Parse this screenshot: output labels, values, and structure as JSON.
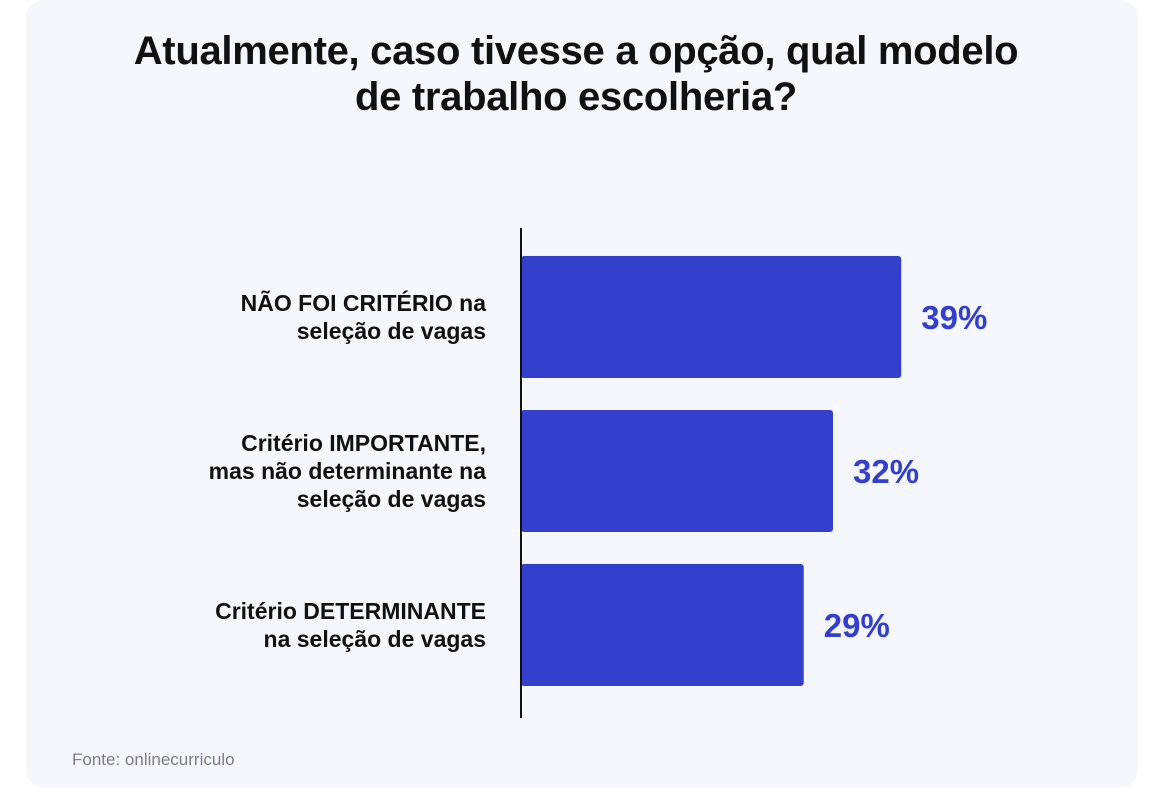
{
  "chart_data": {
    "type": "bar",
    "orientation": "horizontal",
    "title": "Atualmente, caso tivesse a opção, qual modelo de trabalho escolheria?",
    "title_lines": [
      "Atualmente, caso tivesse a opção, qual modelo",
      "de trabalho escolheria?"
    ],
    "categories": [
      "NÃO FOI CRITÉRIO na seleção de vagas",
      "Critério IMPORTANTE, mas não determinante na seleção de vagas",
      "Critério DETERMINANTE na seleção de vagas"
    ],
    "category_lines": [
      [
        "NÃO FOI CRITÉRIO na",
        "seleção de vagas"
      ],
      [
        "Critério IMPORTANTE,",
        "mas não determinante na",
        "seleção de vagas"
      ],
      [
        "Critério DETERMINANTE",
        "na seleção de vagas"
      ]
    ],
    "values": [
      39,
      32,
      29
    ],
    "value_labels": [
      "39%",
      "32%",
      "29%"
    ],
    "unit": "%",
    "xlim": [
      0,
      100
    ],
    "grid": false,
    "legend": "none",
    "bar_color": "#3340cc",
    "label_color": "#3340cc",
    "axis_color": "#111111"
  },
  "source": "Fonte: onlinecurriculo"
}
